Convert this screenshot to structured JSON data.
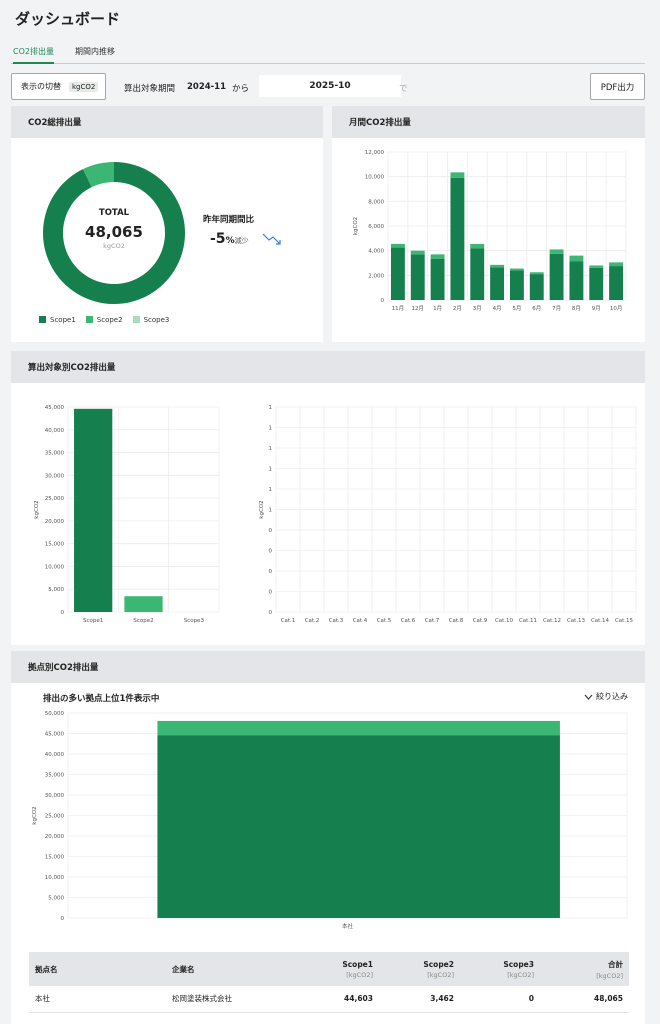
{
  "page": {
    "title": "ダッシュボード"
  },
  "tabs": [
    {
      "label": "CO2排出量",
      "active": true
    },
    {
      "label": "期間内推移",
      "active": false
    }
  ],
  "controls": {
    "toggle_label": "表示の切替",
    "unit": "kgCO2",
    "period_label": "算出対象期間",
    "period_start": "2024-11",
    "from_label": "から",
    "period_end": "2025-10",
    "end_suffix": "で",
    "pdf_button": "PDF出力"
  },
  "total_card": {
    "title": "CO2総排出量",
    "total_label": "TOTAL",
    "total_value": "48,065",
    "total_unit": "kgCO2",
    "yoy_label": "昨年同期間比",
    "yoy_value": "-5",
    "yoy_percent": "%",
    "yoy_suffix": "減少",
    "legend": [
      "Scope1",
      "Scope2",
      "Scope3"
    ]
  },
  "colors": {
    "scope1": "#157f4d",
    "scope2": "#3bb673",
    "scope3": "#a8dcbb",
    "trend": "#3a7bd5"
  },
  "chart_data": [
    {
      "type": "pie",
      "labels": [
        "Scope1",
        "Scope2",
        "Scope3"
      ],
      "values": [
        44603,
        3462,
        0
      ]
    },
    {
      "type": "bar",
      "title": "月間CO2排出量",
      "ylabel": "kgCO2",
      "categories": [
        "11月",
        "12月",
        "1月",
        "2月",
        "3月",
        "4月",
        "5月",
        "6月",
        "7月",
        "8月",
        "9月",
        "10月"
      ],
      "ylim": [
        0,
        12000
      ],
      "yticks": [
        "0",
        "2,000",
        "4,000",
        "6,000",
        "8,000",
        "10,000",
        "12,000"
      ],
      "series": [
        {
          "name": "Scope1",
          "values": [
            4250,
            3700,
            3350,
            9900,
            4200,
            2650,
            2400,
            2100,
            3750,
            3150,
            2600,
            2750
          ]
        },
        {
          "name": "Scope2",
          "values": [
            300,
            300,
            350,
            450,
            350,
            200,
            150,
            150,
            350,
            450,
            200,
            300
          ]
        },
        {
          "name": "Scope3",
          "values": [
            0,
            0,
            0,
            0,
            0,
            0,
            0,
            0,
            0,
            0,
            0,
            0
          ]
        }
      ]
    },
    {
      "type": "bar",
      "title": "算出対象別CO2排出量",
      "ylabel": "kgCO2",
      "categories": [
        "Scope1",
        "Scope2",
        "Scope3"
      ],
      "ylim": [
        0,
        45000
      ],
      "yticks": [
        "0",
        "5,000",
        "10,000",
        "15,000",
        "20,000",
        "25,000",
        "30,000",
        "35,000",
        "40,000",
        "45,000"
      ],
      "values": [
        44603,
        3462,
        0
      ]
    },
    {
      "type": "bar",
      "ylabel": "kgCO2",
      "categories": [
        "Cat.1",
        "Cat.2",
        "Cat.3",
        "Cat.4",
        "Cat.5",
        "Cat.6",
        "Cat.7",
        "Cat.8",
        "Cat.9",
        "Cat.10",
        "Cat.11",
        "Cat.12",
        "Cat.13",
        "Cat.14",
        "Cat.15"
      ],
      "yticks": [
        "0",
        "0",
        "0",
        "0",
        "0",
        "1",
        "1",
        "1",
        "1",
        "1",
        "1"
      ],
      "values": [
        0,
        0,
        0,
        0,
        0,
        0,
        0,
        0,
        0,
        0,
        0,
        0,
        0,
        0,
        0
      ]
    },
    {
      "type": "bar",
      "title": "拠点別CO2排出量",
      "ylabel": "kgCO2",
      "categories": [
        "本社"
      ],
      "ylim": [
        0,
        50000
      ],
      "yticks": [
        "0",
        "5,000",
        "10,000",
        "15,000",
        "20,000",
        "25,000",
        "30,000",
        "35,000",
        "40,000",
        "45,000",
        "50,000"
      ],
      "series": [
        {
          "name": "Scope1",
          "values": [
            44603
          ]
        },
        {
          "name": "Scope2",
          "values": [
            3462
          ]
        },
        {
          "name": "Scope3",
          "values": [
            0
          ]
        }
      ]
    }
  ],
  "monthly_card": {
    "title": "月間CO2排出量"
  },
  "scope_card": {
    "title": "算出対象別CO2排出量"
  },
  "site_card": {
    "title": "拠点別CO2排出量",
    "subtitle": "排出の多い拠点上位1件表示中",
    "filter_label": "絞り込み"
  },
  "site_table": {
    "headers": [
      {
        "label": "拠点名",
        "unit": ""
      },
      {
        "label": "企業名",
        "unit": ""
      },
      {
        "label": "Scope1",
        "unit": "[kgCO2]"
      },
      {
        "label": "Scope2",
        "unit": "[kgCO2]"
      },
      {
        "label": "Scope3",
        "unit": "[kgCO2]"
      },
      {
        "label": "合計",
        "unit": "[kgCO2]"
      }
    ],
    "rows": [
      {
        "site": "本社",
        "company": "松岡塗装株式会社",
        "scope1": "44,603",
        "scope2": "3,462",
        "scope3": "0",
        "total": "48,065"
      }
    ]
  }
}
